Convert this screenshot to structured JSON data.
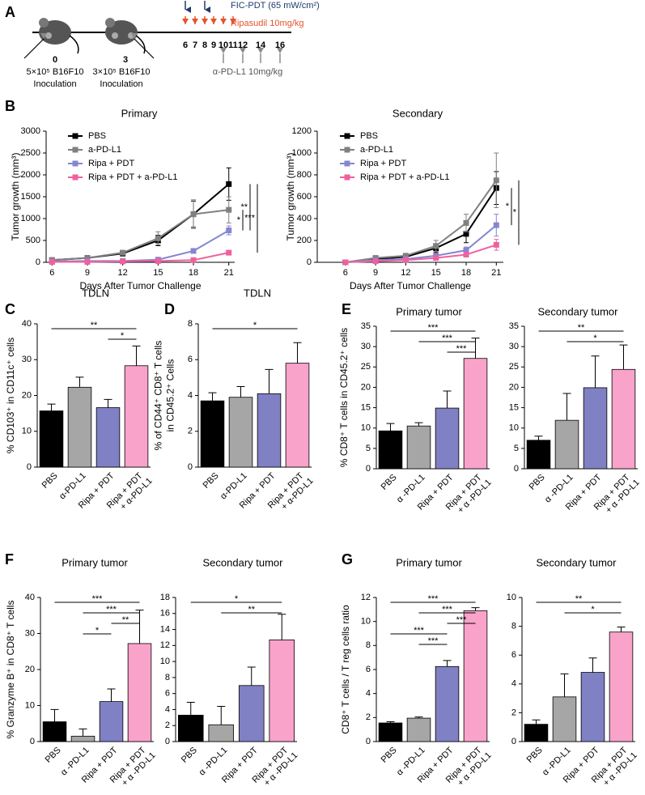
{
  "panel_labels": [
    "A",
    "B",
    "C",
    "D",
    "E",
    "F",
    "G"
  ],
  "schematic": {
    "inoculations": [
      {
        "day": "0",
        "cells": "5×10⁵ B16F10",
        "label": "Inoculation"
      },
      {
        "day": "3",
        "cells": "3×10⁵ B16F10",
        "label": "Inoculation"
      }
    ],
    "days": [
      "6",
      "7",
      "8",
      "9",
      "10",
      "11",
      "12",
      "14",
      "16"
    ],
    "fic_pdt": "FIC-PDT (65 mW/cm²)",
    "ripasudil": "Ripasudil  10mg/kg",
    "anti_pd_l1": "α-PD-L1  10mg/kg"
  },
  "chart_data": [
    {
      "type": "line",
      "title": "Primary",
      "x_label": "Days After Tumor Challenge",
      "y_label": "Tumor growth (mm³)",
      "x": [
        6,
        9,
        12,
        15,
        18,
        21
      ],
      "xlim": [
        5.5,
        21.5
      ],
      "xticks": [
        6,
        9,
        12,
        15,
        18,
        21
      ],
      "ylim": [
        0,
        3000
      ],
      "yticks": [
        0,
        500,
        1000,
        1500,
        2000,
        2500,
        3000
      ],
      "series": [
        {
          "name": "PBS",
          "color": "#000000",
          "values": [
            50,
            100,
            200,
            500,
            1100,
            1790
          ],
          "errors": [
            10,
            20,
            30,
            120,
            300,
            370
          ]
        },
        {
          "name": "a-PD-L1",
          "color": "#808080",
          "values": [
            50,
            100,
            220,
            550,
            1100,
            1200
          ],
          "errors": [
            10,
            20,
            40,
            150,
            330,
            300
          ]
        },
        {
          "name": "Ripa + PDT",
          "color": "#8585d0",
          "values": [
            20,
            30,
            30,
            60,
            260,
            730
          ],
          "errors": [
            10,
            10,
            10,
            30,
            40,
            100
          ]
        },
        {
          "name": "Ripa + PDT + a-PD-L1",
          "color": "#f0609e",
          "values": [
            10,
            10,
            20,
            30,
            50,
            220
          ],
          "errors": [
            5,
            5,
            10,
            10,
            20,
            40
          ]
        }
      ],
      "brackets": [
        {
          "between": [
            1,
            2
          ],
          "label": "*"
        },
        {
          "between": [
            0,
            2
          ],
          "label": "**"
        },
        {
          "between": [
            0,
            3
          ],
          "label": "***"
        }
      ]
    },
    {
      "type": "line",
      "title": "Secondary",
      "x_label": "Days After Tumor Challenge",
      "y_label": "Tumor growth (mm³)",
      "x": [
        6,
        9,
        12,
        15,
        18,
        21
      ],
      "xlim": [
        3.2,
        21.7
      ],
      "xticks": [
        6,
        9,
        12,
        15,
        18,
        21
      ],
      "ylim": [
        0,
        1200
      ],
      "yticks": [
        0,
        200,
        400,
        600,
        800,
        1000,
        1200
      ],
      "series": [
        {
          "name": "PBS",
          "color": "#000000",
          "values": [
            0,
            30,
            50,
            130,
            260,
            680
          ],
          "errors": [
            5,
            10,
            15,
            40,
            80,
            150
          ]
        },
        {
          "name": "a-PD-L1",
          "color": "#808080",
          "values": [
            0,
            40,
            60,
            150,
            360,
            750
          ],
          "errors": [
            5,
            10,
            20,
            50,
            80,
            250
          ]
        },
        {
          "name": "Ripa + PDT",
          "color": "#8585d0",
          "values": [
            0,
            20,
            30,
            60,
            110,
            340
          ],
          "errors": [
            5,
            5,
            10,
            20,
            30,
            100
          ]
        },
        {
          "name": "Ripa + PDT + a-PD-L1",
          "color": "#f0609e",
          "values": [
            0,
            10,
            20,
            40,
            70,
            160
          ],
          "errors": [
            5,
            5,
            5,
            10,
            20,
            50
          ]
        }
      ],
      "brackets": [
        {
          "between": [
            0,
            2
          ],
          "label": "*"
        },
        {
          "between": [
            1,
            3
          ],
          "label": "*"
        }
      ]
    },
    {
      "type": "bar",
      "title": "TDLN",
      "y_label": "% CD103⁺ in CD11c⁺ cells",
      "categories": [
        "PBS",
        "α-PD-L1",
        "Ripa + PDT",
        [
          "Ripa + PDT",
          "+ α-PD-L1"
        ]
      ],
      "values": [
        15.7,
        22.3,
        16.6,
        28.3
      ],
      "errors": [
        1.9,
        2.8,
        2.3,
        5.5
      ],
      "colors": [
        "#000000",
        "#a6a6a6",
        "#8080c4",
        "#f9a3cb"
      ],
      "ylim": [
        0,
        40
      ],
      "yticks": [
        0,
        10,
        20,
        30,
        40
      ],
      "brackets": [
        {
          "between": [
            0,
            3
          ],
          "label": "**"
        },
        {
          "between": [
            2,
            3
          ],
          "label": "*"
        }
      ]
    },
    {
      "type": "bar",
      "title": "TDLN",
      "y_label": [
        "% of CD44⁺ CD8⁺ T cells",
        "in CD45.2⁺ Cells"
      ],
      "categories": [
        "PBS",
        "α-PD-L1",
        "Ripa + PDT",
        [
          "Ripa + PDT",
          "+ α-PD-L1"
        ]
      ],
      "values": [
        3.7,
        3.9,
        4.1,
        5.8
      ],
      "errors": [
        0.45,
        0.6,
        1.35,
        1.15
      ],
      "colors": [
        "#000000",
        "#a6a6a6",
        "#8080c4",
        "#f9a3cb"
      ],
      "ylim": [
        0,
        8
      ],
      "yticks": [
        0,
        2,
        4,
        6,
        8
      ],
      "brackets": [
        {
          "between": [
            0,
            3
          ],
          "label": "*"
        }
      ]
    },
    {
      "type": "bar",
      "title": "Primary tumor",
      "y_label": "% CD8⁺ T cells in CD45.2⁺ cells",
      "categories": [
        "PBS",
        "α -PD-L1",
        "Ripa + PDT",
        [
          "Ripa + PDT",
          "+ α -PD-L1"
        ]
      ],
      "values": [
        9.3,
        10.5,
        14.9,
        27.1
      ],
      "errors": [
        1.8,
        0.8,
        4.2,
        5.0
      ],
      "colors": [
        "#000000",
        "#a6a6a6",
        "#8080c4",
        "#f9a3cb"
      ],
      "ylim": [
        0,
        35
      ],
      "yticks": [
        0,
        5,
        10,
        15,
        20,
        25,
        30,
        35
      ],
      "brackets": [
        {
          "between": [
            0,
            3
          ],
          "label": "***"
        },
        {
          "between": [
            1,
            3
          ],
          "label": "***"
        },
        {
          "between": [
            2,
            3
          ],
          "label": "***"
        }
      ]
    },
    {
      "type": "bar",
      "title": "Secondary tumor",
      "categories": [
        "PBS",
        "α -PD-L1",
        "Ripa + PDT",
        [
          "Ripa + PDT",
          "+ α -PD-L1"
        ]
      ],
      "values": [
        7.0,
        11.9,
        19.9,
        24.4
      ],
      "errors": [
        1.0,
        6.6,
        7.8,
        6.0
      ],
      "colors": [
        "#000000",
        "#a6a6a6",
        "#8080c4",
        "#f9a3cb"
      ],
      "ylim": [
        0,
        35
      ],
      "yticks": [
        0,
        5,
        10,
        15,
        20,
        25,
        30,
        35
      ],
      "brackets": [
        {
          "between": [
            0,
            3
          ],
          "label": "**"
        },
        {
          "between": [
            1,
            3
          ],
          "label": "*"
        }
      ]
    },
    {
      "type": "bar",
      "title": "Primary tumor",
      "y_label": "% Granzyme B⁺ in CD8⁺ T cells",
      "categories": [
        "PBS",
        "α -PD-L1",
        "Ripa + PDT",
        [
          "Ripa + PDT",
          "+ α -PD-L1"
        ]
      ],
      "values": [
        5.5,
        1.5,
        11.1,
        27.2
      ],
      "errors": [
        3.4,
        2.0,
        3.5,
        9.3
      ],
      "colors": [
        "#000000",
        "#a6a6a6",
        "#8080c4",
        "#f9a3cb"
      ],
      "ylim": [
        0,
        40
      ],
      "yticks": [
        0,
        10,
        20,
        30,
        40
      ],
      "brackets": [
        {
          "between": [
            0,
            3
          ],
          "label": "***"
        },
        {
          "between": [
            1,
            3
          ],
          "label": "***"
        },
        {
          "between": [
            2,
            3
          ],
          "label": "**"
        },
        {
          "between": [
            1,
            2
          ],
          "label": "*"
        }
      ]
    },
    {
      "type": "bar",
      "title": "Secondary tumor",
      "categories": [
        "PBS",
        "α -PD-L1",
        "Ripa + PDT",
        [
          "Ripa + PDT",
          "+ α -PD-L1"
        ]
      ],
      "values": [
        3.3,
        2.1,
        7.0,
        12.7
      ],
      "errors": [
        1.6,
        2.3,
        2.3,
        3.2
      ],
      "colors": [
        "#000000",
        "#a6a6a6",
        "#8080c4",
        "#f9a3cb"
      ],
      "ylim": [
        0,
        18
      ],
      "yticks": [
        0,
        2,
        4,
        6,
        8,
        10,
        12,
        14,
        16,
        18
      ],
      "brackets": [
        {
          "between": [
            0,
            3
          ],
          "label": "*"
        },
        {
          "between": [
            1,
            3
          ],
          "label": "**"
        }
      ]
    },
    {
      "type": "bar",
      "title": "Primary tumor",
      "y_label": "CD8⁺ T cells / T reg cells ratio",
      "categories": [
        "PBS",
        "α -PD-L1",
        "Ripa + PDT",
        [
          "Ripa + PDT",
          "+ α -PD-L1"
        ]
      ],
      "values": [
        1.55,
        1.95,
        6.25,
        10.9
      ],
      "errors": [
        0.1,
        0.1,
        0.5,
        0.25
      ],
      "colors": [
        "#000000",
        "#a6a6a6",
        "#8080c4",
        "#f9a3cb"
      ],
      "ylim": [
        0,
        12
      ],
      "yticks": [
        0,
        2,
        4,
        6,
        8,
        10,
        12
      ],
      "brackets": [
        {
          "between": [
            0,
            3
          ],
          "label": "***"
        },
        {
          "between": [
            1,
            3
          ],
          "label": "***"
        },
        {
          "between": [
            2,
            3
          ],
          "label": "***"
        },
        {
          "between": [
            0,
            2
          ],
          "label": "***"
        },
        {
          "between": [
            1,
            2
          ],
          "label": "***"
        }
      ]
    },
    {
      "type": "bar",
      "title": "Secondary tumor",
      "categories": [
        "PBS",
        "α -PD-L1",
        "Ripa + PDT",
        [
          "Ripa + PDT",
          "+ α -PD-L1"
        ]
      ],
      "values": [
        1.2,
        3.1,
        4.8,
        7.6
      ],
      "errors": [
        0.3,
        1.6,
        1.0,
        0.35
      ],
      "colors": [
        "#000000",
        "#a6a6a6",
        "#8080c4",
        "#f9a3cb"
      ],
      "ylim": [
        0,
        10
      ],
      "yticks": [
        0,
        2,
        4,
        6,
        8,
        10
      ],
      "brackets": [
        {
          "between": [
            0,
            3
          ],
          "label": "**"
        },
        {
          "between": [
            1,
            3
          ],
          "label": "*"
        }
      ]
    }
  ]
}
